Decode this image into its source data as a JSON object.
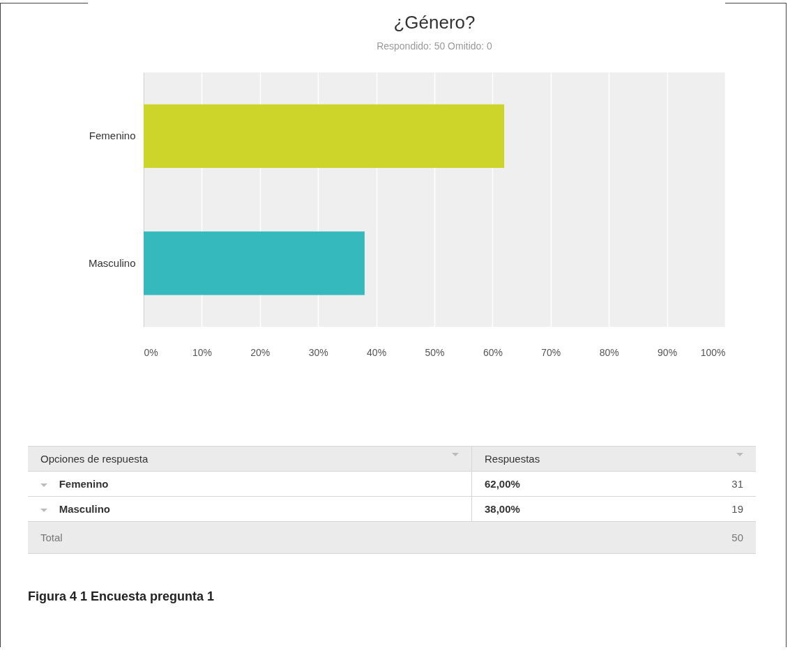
{
  "chart_data": {
    "type": "bar",
    "title": "¿Género?",
    "subtitle": "Respondido: 50   Omitido: 0",
    "orientation": "horizontal",
    "categories": [
      "Femenino",
      "Masculino"
    ],
    "values": [
      62,
      38
    ],
    "colors": [
      "#cdd52a",
      "#35b9bd"
    ],
    "xlim": [
      0,
      100
    ],
    "xticks": [
      {
        "value": 0,
        "label": "0%"
      },
      {
        "value": 10,
        "label": "10%"
      },
      {
        "value": 20,
        "label": "20%"
      },
      {
        "value": 30,
        "label": "30%"
      },
      {
        "value": 40,
        "label": "40%"
      },
      {
        "value": 50,
        "label": "50%"
      },
      {
        "value": 60,
        "label": "60%"
      },
      {
        "value": 70,
        "label": "70%"
      },
      {
        "value": 80,
        "label": "80%"
      },
      {
        "value": 90,
        "label": "90%"
      },
      {
        "value": 100,
        "label": "100%"
      }
    ],
    "grid": "x",
    "annotations": [
      "Opciones de respuesta",
      "Respuestas",
      "62,00%",
      "38,00%",
      "31",
      "19",
      "Total",
      "50",
      "Figura 4 1 Encuesta pregunta 1"
    ]
  }
}
